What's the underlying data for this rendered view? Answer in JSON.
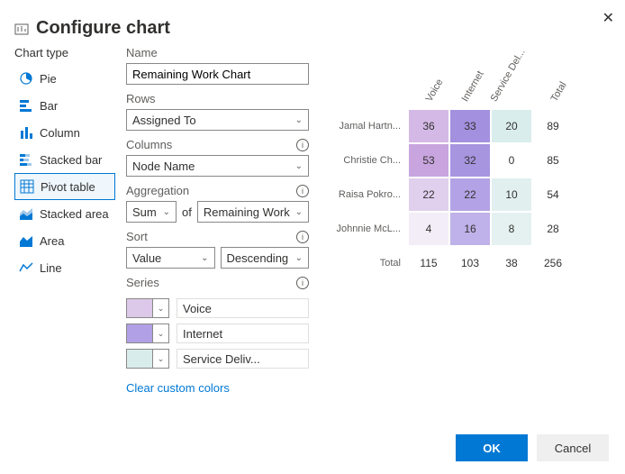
{
  "dialog": {
    "title": "Configure chart",
    "close_glyph": "✕"
  },
  "chartTypes": {
    "label": "Chart type",
    "items": [
      {
        "label": "Pie"
      },
      {
        "label": "Bar"
      },
      {
        "label": "Column"
      },
      {
        "label": "Stacked bar"
      },
      {
        "label": "Pivot table"
      },
      {
        "label": "Stacked area"
      },
      {
        "label": "Area"
      },
      {
        "label": "Line"
      }
    ],
    "selected_index": 4,
    "icon_stroke": "#0078d4",
    "icon_fill": "#0078d4",
    "icon_accent": "#106ebe"
  },
  "form": {
    "name": {
      "label": "Name",
      "value": "Remaining Work Chart"
    },
    "rows": {
      "label": "Rows",
      "value": "Assigned To"
    },
    "columns": {
      "label": "Columns",
      "value": "Node Name"
    },
    "aggregation": {
      "label": "Aggregation",
      "func": "Sum",
      "of_text": "of",
      "field": "Remaining Work"
    },
    "sort": {
      "label": "Sort",
      "by": "Value",
      "dir": "Descending"
    },
    "series": {
      "label": "Series",
      "items": [
        {
          "label": "Voice",
          "color": "#dcc8e9"
        },
        {
          "label": "Internet",
          "color": "#b1a0e6"
        },
        {
          "label": "Service Deliv...",
          "color": "#d9ecec"
        }
      ]
    },
    "clear_link": "Clear custom colors",
    "info_glyph": "i"
  },
  "preview": {
    "col_headers": [
      "Voice",
      "Internet",
      "Service Del...",
      "Total"
    ],
    "row_headers": [
      "Jamal Hartn...",
      "Christie Ch...",
      "Raisa Pokro...",
      "Johnnie McL..."
    ],
    "cells": [
      [
        36,
        33,
        20,
        89
      ],
      [
        53,
        32,
        0,
        85
      ],
      [
        22,
        22,
        10,
        54
      ],
      [
        4,
        16,
        8,
        28
      ]
    ],
    "cell_colors": [
      [
        "#d4b9e6",
        "#a390de",
        "#daeded"
      ],
      [
        "#c8a5df",
        "#a795e0",
        "#ffffff"
      ],
      [
        "#e1cfee",
        "#b3a2e5",
        "#e1efef"
      ],
      [
        "#f3edf8",
        "#bfb1e9",
        "#e5f1f1"
      ]
    ],
    "totals_label": "Total",
    "col_totals": [
      115,
      103,
      38,
      256
    ]
  },
  "footer": {
    "ok": "OK",
    "cancel": "Cancel",
    "primary_bg": "#0078d4",
    "default_bg": "#efefef"
  }
}
